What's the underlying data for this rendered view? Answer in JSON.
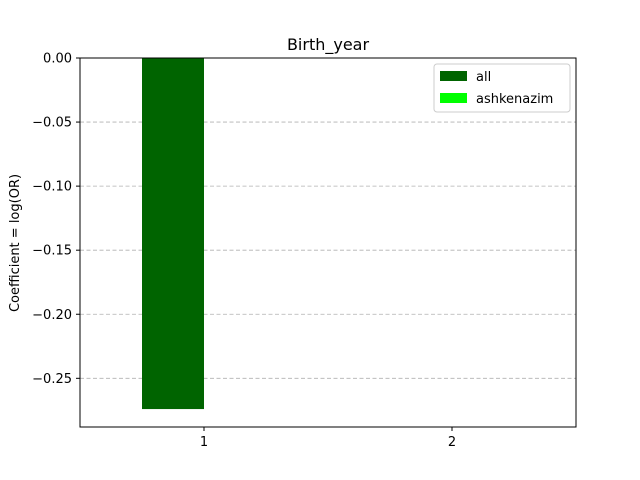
{
  "chart_data": {
    "type": "bar",
    "title": "Birth_year",
    "xlabel": "",
    "ylabel": "Coefficient = log(OR)",
    "categories": [
      "1",
      "2"
    ],
    "series": [
      {
        "name": "all",
        "color": "#006400",
        "values": [
          -0.274,
          null
        ]
      },
      {
        "name": "ashkenazim",
        "color": "#00ff00",
        "values": [
          null,
          null
        ]
      }
    ],
    "ylim": [
      -0.288,
      0.0
    ],
    "xlim": [
      0.5,
      2.5
    ],
    "yticks": [
      0.0,
      -0.05,
      -0.1,
      -0.15,
      -0.2,
      -0.25
    ],
    "ytick_labels": [
      "0.00",
      "−0.05",
      "−0.10",
      "−0.15",
      "−0.20",
      "−0.25"
    ],
    "grid": "y-dashed",
    "legend_position": "top-right"
  }
}
